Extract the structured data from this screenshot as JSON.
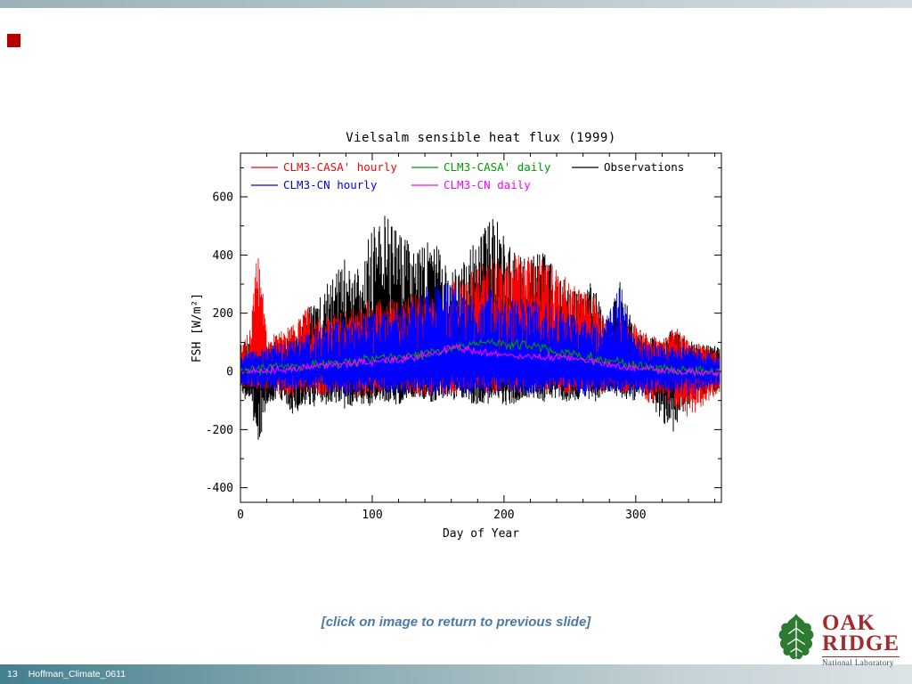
{
  "slide": {
    "caption": "[click on image to return to previous slide]",
    "page_number": "13",
    "footer_title": "Hoffman_Climate_0611"
  },
  "logo": {
    "line1": "OAK",
    "line2": "RIDGE",
    "subtitle": "National Laboratory",
    "leaf_color": "#2d7a33",
    "text_color": "#a02c2c"
  },
  "chart_data": {
    "type": "line",
    "title": "Vielsalm sensible heat flux (1999)",
    "xlabel": "Day of Year",
    "ylabel": "FSH [W/m²]",
    "xlim": [
      0,
      365
    ],
    "ylim": [
      -450,
      750
    ],
    "xticks": [
      0,
      100,
      200,
      300
    ],
    "x_minor_step": 20,
    "yticks": [
      -400,
      -200,
      0,
      200,
      400,
      600
    ],
    "y_minor_step": 100,
    "grid": false,
    "legend_position": "top-inside",
    "noise_seed": 1999,
    "legend_rows": [
      [
        {
          "label": "CLM3-CASA' hourly",
          "color": "#ff0000"
        },
        {
          "label": "CLM3-CASA' daily",
          "color": "#009900"
        },
        {
          "label": "Observations",
          "color": "#000000"
        }
      ],
      [
        {
          "label": "CLM3-CN hourly",
          "color": "#0000ff"
        },
        {
          "label": "CLM3-CN daily",
          "color": "#ff00ff"
        }
      ]
    ],
    "series": [
      {
        "name": "Observations",
        "color": "#000000",
        "kind": "hourly",
        "width": 1.0,
        "envelope": [
          [
            0,
            -70,
            90
          ],
          [
            8,
            -130,
            120
          ],
          [
            14,
            -260,
            110
          ],
          [
            20,
            -110,
            100
          ],
          [
            30,
            -90,
            110
          ],
          [
            40,
            -160,
            130
          ],
          [
            50,
            -110,
            210
          ],
          [
            60,
            -130,
            260
          ],
          [
            70,
            -110,
            330
          ],
          [
            80,
            -130,
            390
          ],
          [
            90,
            -110,
            350
          ],
          [
            100,
            -130,
            510
          ],
          [
            108,
            -100,
            560
          ],
          [
            115,
            -120,
            500
          ],
          [
            125,
            -110,
            460
          ],
          [
            135,
            -90,
            430
          ],
          [
            145,
            -110,
            450
          ],
          [
            155,
            -90,
            410
          ],
          [
            165,
            -100,
            340
          ],
          [
            175,
            -110,
            430
          ],
          [
            185,
            -120,
            490
          ],
          [
            193,
            -100,
            545
          ],
          [
            200,
            -120,
            460
          ],
          [
            210,
            -110,
            400
          ],
          [
            220,
            -90,
            390
          ],
          [
            230,
            -110,
            420
          ],
          [
            240,
            -90,
            360
          ],
          [
            250,
            -110,
            300
          ],
          [
            260,
            -90,
            260
          ],
          [
            268,
            -110,
            330
          ],
          [
            278,
            -70,
            160
          ],
          [
            288,
            -90,
            330
          ],
          [
            298,
            -110,
            160
          ],
          [
            308,
            -90,
            130
          ],
          [
            318,
            -160,
            110
          ],
          [
            328,
            -230,
            150
          ],
          [
            338,
            -130,
            110
          ],
          [
            348,
            -90,
            95
          ],
          [
            364,
            -70,
            85
          ]
        ]
      },
      {
        "name": "CLM3-CASA' hourly",
        "color": "#ff0000",
        "kind": "hourly",
        "width": 0.9,
        "envelope": [
          [
            0,
            -50,
            70
          ],
          [
            8,
            -70,
            160
          ],
          [
            13,
            -60,
            455
          ],
          [
            20,
            -70,
            130
          ],
          [
            30,
            -80,
            140
          ],
          [
            40,
            -90,
            160
          ],
          [
            50,
            -70,
            230
          ],
          [
            60,
            -90,
            190
          ],
          [
            70,
            -70,
            200
          ],
          [
            80,
            -70,
            210
          ],
          [
            90,
            -90,
            230
          ],
          [
            100,
            -80,
            260
          ],
          [
            110,
            -70,
            240
          ],
          [
            120,
            -60,
            260
          ],
          [
            130,
            -80,
            270
          ],
          [
            140,
            -90,
            290
          ],
          [
            150,
            -70,
            230
          ],
          [
            160,
            -90,
            310
          ],
          [
            170,
            -70,
            330
          ],
          [
            180,
            -60,
            360
          ],
          [
            190,
            -80,
            400
          ],
          [
            200,
            -60,
            390
          ],
          [
            210,
            -80,
            420
          ],
          [
            220,
            -60,
            400
          ],
          [
            230,
            -80,
            390
          ],
          [
            240,
            -60,
            360
          ],
          [
            250,
            -80,
            310
          ],
          [
            260,
            -60,
            290
          ],
          [
            270,
            -80,
            260
          ],
          [
            280,
            -60,
            160
          ],
          [
            290,
            -80,
            210
          ],
          [
            300,
            -60,
            160
          ],
          [
            310,
            -110,
            130
          ],
          [
            320,
            -90,
            110
          ],
          [
            330,
            -130,
            160
          ],
          [
            340,
            -160,
            110
          ],
          [
            350,
            -130,
            90
          ],
          [
            364,
            -70,
            70
          ]
        ]
      },
      {
        "name": "CLM3-CN hourly",
        "color": "#0000ff",
        "kind": "hourly",
        "width": 0.9,
        "envelope": [
          [
            0,
            -45,
            55
          ],
          [
            20,
            -65,
            85
          ],
          [
            40,
            -65,
            110
          ],
          [
            60,
            -65,
            155
          ],
          [
            80,
            -85,
            185
          ],
          [
            100,
            -65,
            205
          ],
          [
            120,
            -85,
            225
          ],
          [
            135,
            -65,
            260
          ],
          [
            142,
            -85,
            300
          ],
          [
            150,
            -90,
            315
          ],
          [
            158,
            -85,
            305
          ],
          [
            165,
            -65,
            290
          ],
          [
            172,
            -85,
            255
          ],
          [
            180,
            -65,
            250
          ],
          [
            190,
            -85,
            285
          ],
          [
            200,
            -65,
            255
          ],
          [
            215,
            -85,
            250
          ],
          [
            230,
            -75,
            240
          ],
          [
            245,
            -65,
            210
          ],
          [
            260,
            -85,
            185
          ],
          [
            275,
            -65,
            150
          ],
          [
            288,
            -75,
            330
          ],
          [
            295,
            -80,
            150
          ],
          [
            305,
            -85,
            105
          ],
          [
            320,
            -65,
            85
          ],
          [
            340,
            -85,
            85
          ],
          [
            364,
            -45,
            55
          ]
        ]
      },
      {
        "name": "CLM3-CASA' daily",
        "color": "#009900",
        "kind": "daily",
        "width": 1.1,
        "jitter": 22,
        "points": [
          [
            0,
            5
          ],
          [
            20,
            8
          ],
          [
            40,
            15
          ],
          [
            60,
            22
          ],
          [
            80,
            30
          ],
          [
            100,
            40
          ],
          [
            120,
            45
          ],
          [
            140,
            60
          ],
          [
            155,
            75
          ],
          [
            170,
            95
          ],
          [
            185,
            100
          ],
          [
            200,
            92
          ],
          [
            215,
            88
          ],
          [
            230,
            80
          ],
          [
            245,
            65
          ],
          [
            260,
            55
          ],
          [
            275,
            40
          ],
          [
            290,
            28
          ],
          [
            305,
            18
          ],
          [
            320,
            8
          ],
          [
            340,
            4
          ],
          [
            364,
            0
          ]
        ]
      },
      {
        "name": "CLM3-CN daily",
        "color": "#ff00ff",
        "kind": "daily",
        "width": 1.1,
        "jitter": 16,
        "points": [
          [
            0,
            0
          ],
          [
            20,
            4
          ],
          [
            40,
            10
          ],
          [
            60,
            18
          ],
          [
            80,
            25
          ],
          [
            100,
            33
          ],
          [
            120,
            38
          ],
          [
            140,
            55
          ],
          [
            150,
            70
          ],
          [
            160,
            80
          ],
          [
            175,
            72
          ],
          [
            190,
            62
          ],
          [
            205,
            58
          ],
          [
            220,
            52
          ],
          [
            235,
            48
          ],
          [
            250,
            42
          ],
          [
            265,
            35
          ],
          [
            280,
            24
          ],
          [
            295,
            12
          ],
          [
            310,
            6
          ],
          [
            330,
            0
          ],
          [
            364,
            -4
          ]
        ]
      }
    ]
  }
}
